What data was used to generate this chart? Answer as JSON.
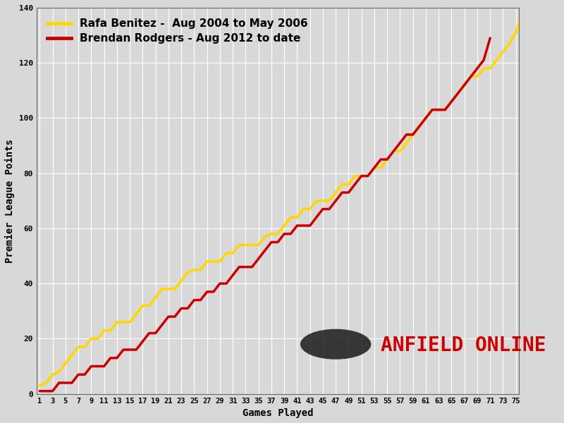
{
  "xlabel": "Games Played",
  "ylabel": "Premier League Points",
  "background_color": "#d8d8d8",
  "grid_color": "#ffffff",
  "benitez_color": "#FFD700",
  "rodgers_color": "#CC0000",
  "benitez_label": "Rafa Benitez -  Aug 2004 to May 2006",
  "rodgers_label": "Brendan Rodgers - Aug 2012 to date",
  "ylim": [
    0,
    140
  ],
  "xlim_min": 1,
  "xlim_max": 75,
  "yticks": [
    0,
    20,
    40,
    60,
    80,
    100,
    120,
    140
  ],
  "xticks": [
    1,
    3,
    5,
    7,
    9,
    11,
    13,
    15,
    17,
    19,
    21,
    23,
    25,
    27,
    29,
    31,
    33,
    35,
    37,
    39,
    41,
    43,
    45,
    47,
    49,
    51,
    53,
    55,
    57,
    59,
    61,
    63,
    65,
    67,
    69,
    71,
    73,
    75
  ],
  "benitez_points": [
    3,
    4,
    7,
    8,
    11,
    14,
    17,
    17,
    20,
    20,
    23,
    23,
    26,
    26,
    26,
    29,
    32,
    32,
    35,
    38,
    38,
    38,
    41,
    44,
    45,
    45,
    48,
    48,
    48,
    51,
    51,
    54,
    54,
    54,
    54,
    57,
    58,
    58,
    61,
    64,
    64,
    67,
    67,
    70,
    70,
    70,
    73,
    76,
    76,
    79,
    79,
    79,
    82,
    82,
    85,
    88,
    88,
    91,
    94,
    97,
    100,
    103,
    103,
    103,
    106,
    109,
    112,
    115,
    115,
    118,
    118,
    121,
    124,
    127,
    131,
    138
  ],
  "rodgers_points": [
    1,
    1,
    1,
    4,
    4,
    4,
    7,
    7,
    10,
    10,
    10,
    13,
    13,
    16,
    16,
    16,
    19,
    22,
    22,
    25,
    28,
    28,
    31,
    31,
    34,
    34,
    37,
    37,
    40,
    40,
    43,
    46,
    46,
    46,
    49,
    52,
    55,
    55,
    58,
    58,
    61,
    61,
    61,
    64,
    67,
    67,
    70,
    73,
    73,
    76,
    79,
    79,
    82,
    85,
    85,
    88,
    91,
    94,
    94,
    97,
    100,
    103,
    103,
    103,
    106,
    109,
    112,
    115,
    118,
    121,
    129
  ],
  "line_width": 2.5
}
